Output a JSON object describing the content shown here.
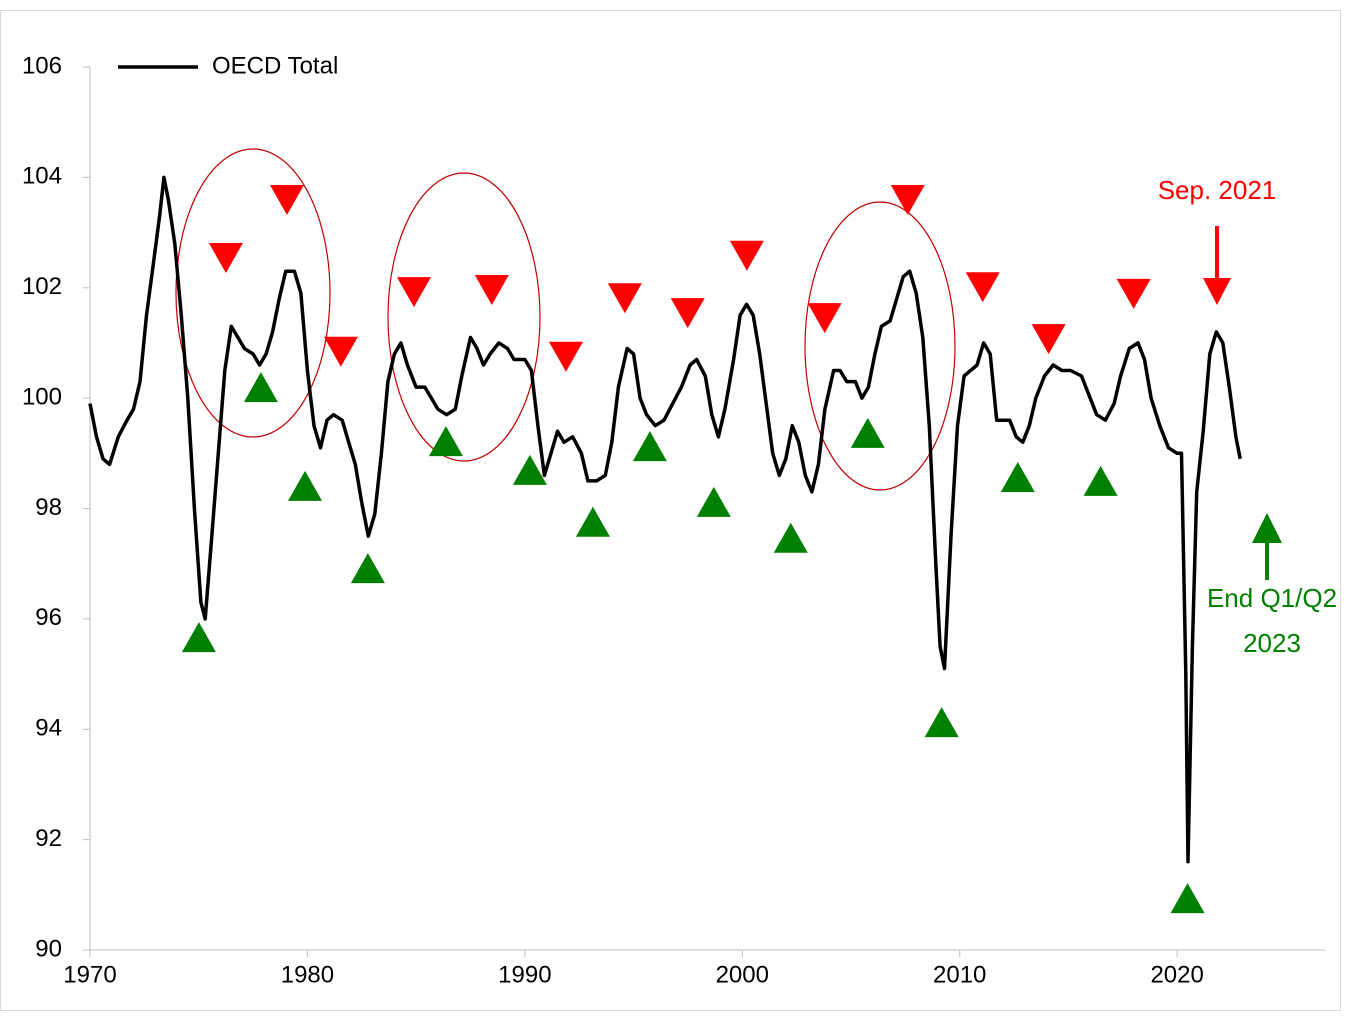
{
  "chart_data": {
    "type": "line",
    "xlim": [
      1970,
      2026.8
    ],
    "xticks": [
      1970,
      1980,
      1990,
      2000,
      2010,
      2020
    ],
    "ylim": [
      90,
      106
    ],
    "yticks": [
      90,
      92,
      94,
      96,
      98,
      100,
      102,
      104,
      106
    ],
    "legend": "top-left",
    "series": [
      {
        "name": "OECD Total",
        "color": "#000000",
        "x": [
          1970.0,
          1970.3,
          1970.6,
          1970.9,
          1971.3,
          1971.7,
          1972.0,
          1972.3,
          1972.6,
          1972.9,
          1973.2,
          1973.4,
          1973.6,
          1973.9,
          1974.2,
          1974.5,
          1974.8,
          1975.1,
          1975.3,
          1975.6,
          1975.9,
          1976.2,
          1976.5,
          1976.8,
          1977.1,
          1977.5,
          1977.8,
          1978.1,
          1978.4,
          1978.7,
          1979.0,
          1979.4,
          1979.7,
          1980.0,
          1980.3,
          1980.6,
          1980.9,
          1981.2,
          1981.6,
          1981.9,
          1982.2,
          1982.5,
          1982.8,
          1983.1,
          1983.4,
          1983.7,
          1984.0,
          1984.3,
          1984.6,
          1985.0,
          1985.4,
          1985.7,
          1986.0,
          1986.4,
          1986.8,
          1987.1,
          1987.5,
          1987.8,
          1988.1,
          1988.4,
          1988.8,
          1989.2,
          1989.5,
          1990.0,
          1990.3,
          1990.6,
          1990.9,
          1991.2,
          1991.5,
          1991.8,
          1992.2,
          1992.6,
          1992.9,
          1993.3,
          1993.7,
          1994.0,
          1994.3,
          1994.7,
          1995.0,
          1995.3,
          1995.6,
          1996.0,
          1996.4,
          1996.8,
          1997.2,
          1997.6,
          1997.9,
          1998.3,
          1998.6,
          1998.9,
          1999.2,
          1999.6,
          1999.9,
          2000.2,
          2000.5,
          2000.8,
          2001.1,
          2001.4,
          2001.7,
          2002.0,
          2002.3,
          2002.6,
          2002.9,
          2003.2,
          2003.5,
          2003.8,
          2004.2,
          2004.5,
          2004.8,
          2005.2,
          2005.5,
          2005.8,
          2006.1,
          2006.4,
          2006.8,
          2007.1,
          2007.4,
          2007.7,
          2008.0,
          2008.3,
          2008.6,
          2008.9,
          2009.1,
          2009.3,
          2009.6,
          2009.9,
          2010.2,
          2010.5,
          2010.8,
          2011.1,
          2011.4,
          2011.7,
          2012.0,
          2012.3,
          2012.6,
          2012.9,
          2013.2,
          2013.5,
          2013.9,
          2014.3,
          2014.7,
          2015.1,
          2015.6,
          2015.9,
          2016.3,
          2016.7,
          2017.1,
          2017.4,
          2017.8,
          2018.2,
          2018.5,
          2018.8,
          2019.2,
          2019.6,
          2020.0,
          2020.2,
          2020.4,
          2020.5,
          2020.7,
          2020.9,
          2021.2,
          2021.5,
          2021.8,
          2022.1,
          2022.4,
          2022.7,
          2022.9
        ],
        "values": [
          99.9,
          99.3,
          98.9,
          98.8,
          99.3,
          99.6,
          99.8,
          100.3,
          101.5,
          102.4,
          103.3,
          104.0,
          103.6,
          102.8,
          101.5,
          100.0,
          98.0,
          96.3,
          96.0,
          97.5,
          99.0,
          100.5,
          101.3,
          101.1,
          100.9,
          100.8,
          100.6,
          100.8,
          101.2,
          101.8,
          102.3,
          102.3,
          101.9,
          100.5,
          99.5,
          99.1,
          99.6,
          99.7,
          99.6,
          99.2,
          98.8,
          98.1,
          97.5,
          97.9,
          99.0,
          100.3,
          100.8,
          101.0,
          100.6,
          100.2,
          100.2,
          100.0,
          99.8,
          99.7,
          99.8,
          100.4,
          101.1,
          100.9,
          100.6,
          100.8,
          101.0,
          100.9,
          100.7,
          100.7,
          100.5,
          99.5,
          98.6,
          99.0,
          99.4,
          99.2,
          99.3,
          99.0,
          98.5,
          98.5,
          98.6,
          99.2,
          100.2,
          100.9,
          100.8,
          100.0,
          99.7,
          99.5,
          99.6,
          99.9,
          100.2,
          100.6,
          100.7,
          100.4,
          99.7,
          99.3,
          99.8,
          100.7,
          101.5,
          101.7,
          101.5,
          100.8,
          99.9,
          99.0,
          98.6,
          98.9,
          99.5,
          99.2,
          98.6,
          98.3,
          98.8,
          99.8,
          100.5,
          100.5,
          100.3,
          100.3,
          100.0,
          100.2,
          100.8,
          101.3,
          101.4,
          101.8,
          102.2,
          102.3,
          101.9,
          101.1,
          99.5,
          97.0,
          95.5,
          95.1,
          97.5,
          99.5,
          100.4,
          100.5,
          100.6,
          101.0,
          100.8,
          99.6,
          99.6,
          99.6,
          99.3,
          99.2,
          99.5,
          100.0,
          100.4,
          100.6,
          100.5,
          100.5,
          100.4,
          100.1,
          99.7,
          99.6,
          99.9,
          100.4,
          100.9,
          101.0,
          100.7,
          100.0,
          99.5,
          99.1,
          99.0,
          99.0,
          95.0,
          91.6,
          95.5,
          98.3,
          99.4,
          100.8,
          101.2,
          101.0,
          100.2,
          99.3,
          98.9
        ]
      }
    ],
    "markers": [
      {
        "shape": "triangle-down",
        "color": "#ff0000",
        "x": [
          1976.25,
          1979.06,
          1981.54,
          1984.9,
          1988.48,
          1991.89,
          1994.6,
          1997.49,
          2000.21,
          2003.79,
          2007.61,
          2011.06,
          2014.09,
          2018.0
        ],
        "values": [
          102.54,
          103.59,
          100.84,
          101.92,
          101.96,
          100.75,
          101.81,
          101.54,
          102.58,
          101.45,
          103.59,
          102.01,
          101.07,
          101.89
        ]
      },
      {
        "shape": "triangle-up",
        "color": "#008000",
        "x": [
          1975.01,
          1977.86,
          1979.89,
          1982.78,
          1986.37,
          1990.23,
          1993.13,
          1995.75,
          1998.69,
          2002.23,
          2005.77,
          2009.17,
          2012.67,
          2016.48,
          2020.48
        ],
        "values": [
          95.67,
          100.2,
          98.41,
          96.92,
          99.22,
          98.7,
          97.76,
          99.13,
          98.12,
          97.47,
          99.37,
          94.13,
          98.57,
          98.5,
          90.94
        ]
      }
    ],
    "annotations": [
      {
        "lines": [
          "Sep. 2021"
        ],
        "color": "#ff0000"
      },
      {
        "lines": [
          "End Q1/Q2",
          "2023"
        ],
        "color": "#008000"
      }
    ]
  }
}
